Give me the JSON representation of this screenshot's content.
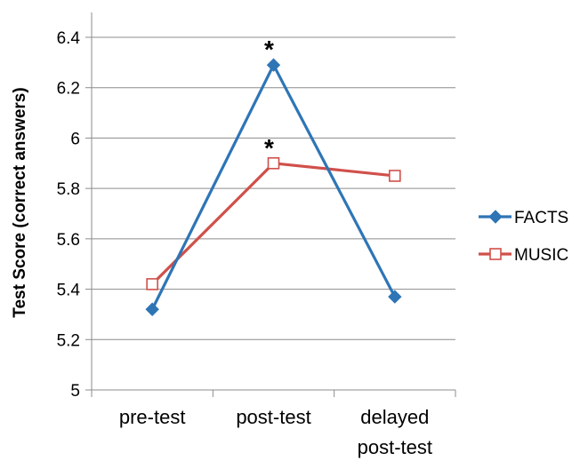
{
  "chart_data": {
    "type": "line",
    "title": "",
    "xlabel": "",
    "ylabel": "Test Score (correct answers)",
    "categories": [
      "pre-test",
      "post-test",
      "delayed\npost-test"
    ],
    "ylim": [
      5,
      6.4
    ],
    "yticks": [
      "5",
      "5.2",
      "5.4",
      "5.6",
      "5.8",
      "6",
      "6.2",
      "6.4"
    ],
    "grid": true,
    "legend_position": "right",
    "series": [
      {
        "name": "FACTS",
        "values": [
          5.32,
          6.29,
          5.37
        ],
        "color": "#2e75b6",
        "marker": "filled-diamond"
      },
      {
        "name": "MUSIC",
        "values": [
          5.42,
          5.9,
          5.85
        ],
        "color": "#d0504a",
        "marker": "hollow-square"
      }
    ],
    "annotations": [
      {
        "text": "*",
        "series": "FACTS",
        "category": "post-test"
      },
      {
        "text": "*",
        "series": "MUSIC",
        "category": "post-test"
      }
    ]
  }
}
